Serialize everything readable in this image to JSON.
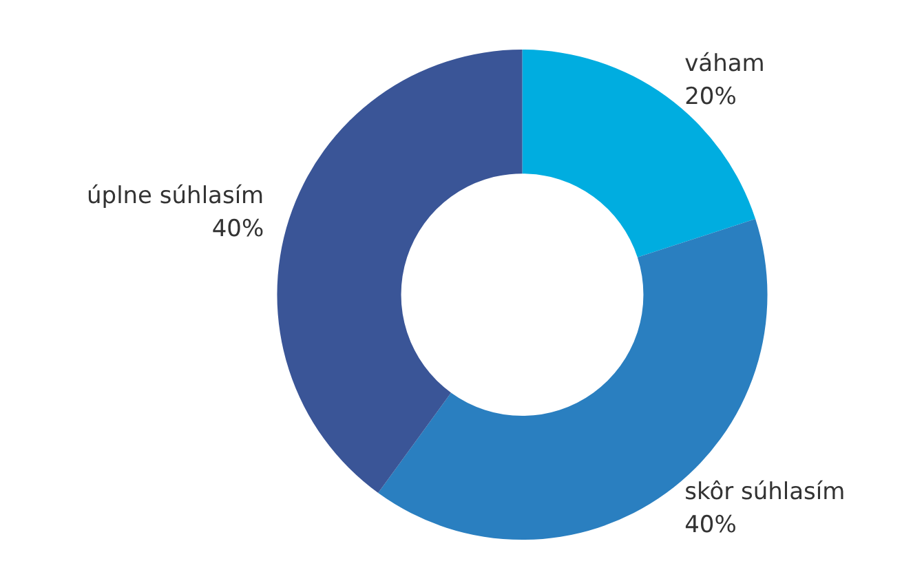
{
  "chart_data": {
    "type": "donut",
    "categories": [
      "váham",
      "skôr súhlasím",
      "úplne súhlasím"
    ],
    "values": [
      20,
      40,
      40
    ],
    "value_labels": [
      "20%",
      "40%",
      "40%"
    ],
    "colors": [
      "#00ade0",
      "#2a7fc0",
      "#3a5597"
    ],
    "legend": false
  }
}
